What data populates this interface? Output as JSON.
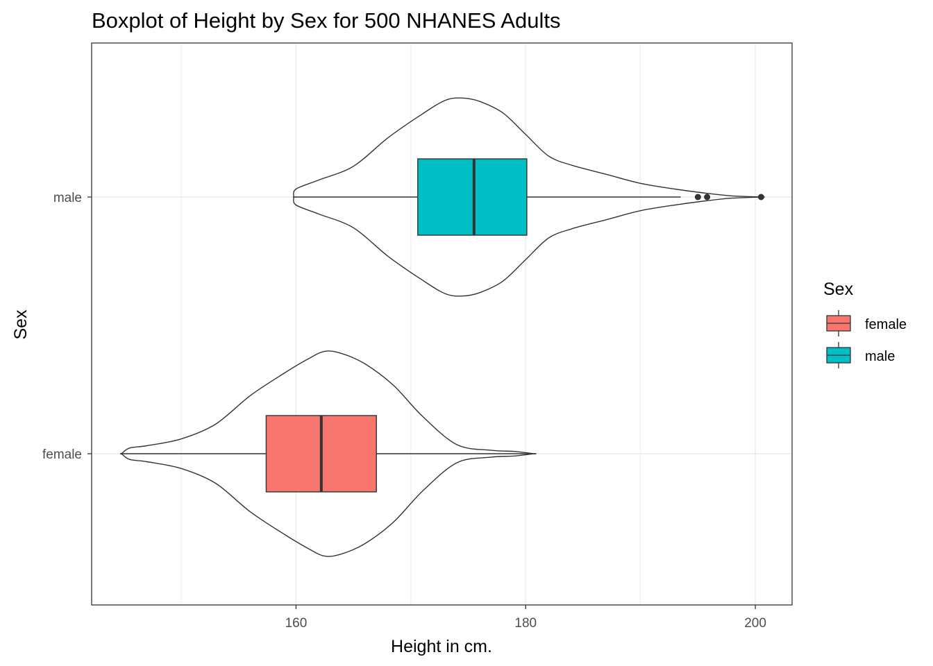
{
  "chart_data": {
    "type": "boxplot",
    "title": "Boxplot of Height by Sex for 500 NHANES Adults",
    "xlabel": "Height in cm.",
    "ylabel": "Sex",
    "xlim": [
      142.2,
      203.2
    ],
    "x_ticks": [
      160,
      180,
      200
    ],
    "x_tick_labels": [
      "160",
      "180",
      "200"
    ],
    "x_minor_gridlines": [
      150,
      170,
      190
    ],
    "grid": true,
    "legend": {
      "title": "Sex",
      "position": "right",
      "entries": [
        "female",
        "male"
      ]
    },
    "colors": {
      "female": "#F8766D",
      "male": "#00BFC4",
      "outline": "#333333",
      "grid": "#ebebeb",
      "panel_border": "#333333"
    },
    "categories": [
      "female",
      "male"
    ],
    "series": [
      {
        "name": "female",
        "box": {
          "min": 144.8,
          "q1": 157.4,
          "median": 162.2,
          "q3": 167.0,
          "max": 180.7
        },
        "outliers": [],
        "violin": {
          "x": [
            144.8,
            145.5,
            147,
            150,
            153,
            156,
            159,
            161,
            162.5,
            164,
            166,
            168.5,
            171,
            174,
            177,
            179,
            180.7
          ],
          "density": [
            0.0,
            0.05,
            0.07,
            0.13,
            0.26,
            0.51,
            0.71,
            0.83,
            0.9,
            0.88,
            0.79,
            0.6,
            0.33,
            0.08,
            0.03,
            0.02,
            0.0
          ]
        }
      },
      {
        "name": "male",
        "box": {
          "min": 159.8,
          "q1": 170.6,
          "median": 175.5,
          "q3": 180.1,
          "max": 193.5
        },
        "outliers": [
          195.0,
          195.8,
          200.5
        ],
        "violin": {
          "x": [
            159.8,
            160.0,
            162,
            165,
            168,
            171,
            173,
            174.5,
            176,
            178,
            180,
            182,
            184,
            187,
            190,
            193,
            196,
            198,
            200.5
          ],
          "density": [
            0.0,
            0.07,
            0.15,
            0.27,
            0.52,
            0.73,
            0.85,
            0.87,
            0.84,
            0.74,
            0.55,
            0.36,
            0.28,
            0.2,
            0.12,
            0.07,
            0.03,
            0.01,
            0.0
          ]
        }
      }
    ]
  }
}
